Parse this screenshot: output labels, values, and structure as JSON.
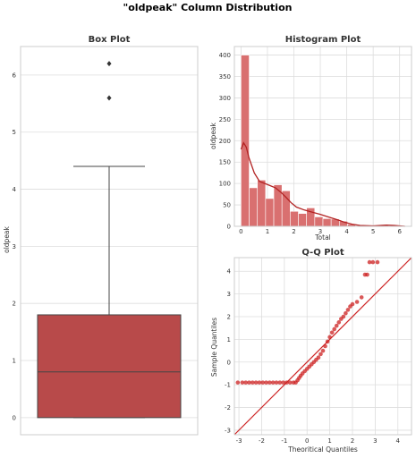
{
  "figure": {
    "title": "\"oldpeak\" Column Distribution"
  },
  "chart_data": [
    {
      "type": "box",
      "title": "Box Plot",
      "xlabel": "",
      "ylabel": "oldpeak",
      "ylim": [
        -0.3,
        6.5
      ],
      "yticks": [
        0,
        1,
        2,
        3,
        4,
        5,
        6
      ],
      "grid": true,
      "color": "#b84a4a",
      "box": {
        "whisker_low": 0.0,
        "q1": 0.0,
        "median": 0.8,
        "q3": 1.8,
        "whisker_high": 4.4
      },
      "outliers": [
        5.6,
        6.2
      ]
    },
    {
      "type": "bar",
      "title": "Histogram Plot",
      "xlabel": "Total",
      "ylabel": "oldpeak",
      "xlim": [
        -0.25,
        6.45
      ],
      "ylim": [
        0,
        420
      ],
      "xticks": [
        0,
        1,
        2,
        3,
        4,
        5,
        6
      ],
      "yticks": [
        0,
        50,
        100,
        150,
        200,
        250,
        300,
        350,
        400
      ],
      "grid": true,
      "bar_color": "#d97070",
      "kde_color": "#b22222",
      "bin_width": 0.31,
      "bins": [
        0,
        0.31,
        0.62,
        0.93,
        1.24,
        1.55,
        1.86,
        2.17,
        2.48,
        2.79,
        3.1,
        3.41,
        3.72,
        4.03,
        4.34,
        4.65,
        4.96,
        5.27,
        5.58,
        5.89
      ],
      "values": [
        400,
        90,
        108,
        65,
        97,
        83,
        35,
        30,
        43,
        22,
        18,
        17,
        12,
        5,
        2,
        0,
        1,
        3,
        0,
        2
      ],
      "kde_x": [
        0,
        0.1,
        0.2,
        0.3,
        0.5,
        0.7,
        0.9,
        1.1,
        1.3,
        1.5,
        1.7,
        1.9,
        2.1,
        2.4,
        2.7,
        3.0,
        3.3,
        3.6,
        3.9,
        4.2,
        4.5,
        5.0,
        5.5,
        5.8,
        6.2
      ],
      "kde_y": [
        180,
        195,
        185,
        160,
        125,
        105,
        100,
        95,
        90,
        80,
        68,
        55,
        45,
        38,
        33,
        28,
        22,
        16,
        10,
        5,
        2,
        1,
        3,
        2,
        0
      ]
    },
    {
      "type": "scatter",
      "title": "Q-Q Plot",
      "xlabel": "Theoritical Quantiles",
      "ylabel": "Sample Quantiles",
      "xlim": [
        -3.2,
        4.6
      ],
      "ylim": [
        -3.2,
        4.6
      ],
      "xticks": [
        -3,
        -2,
        -1,
        0,
        1,
        2,
        3,
        4
      ],
      "yticks": [
        -3,
        -2,
        -1,
        0,
        1,
        2,
        3,
        4
      ],
      "grid": true,
      "point_color": "#cc2020",
      "line_color": "#cc2020",
      "reference_line": [
        [
          -3.2,
          -3.2
        ],
        [
          4.6,
          4.6
        ]
      ],
      "points": [
        [
          -3.05,
          -0.9
        ],
        [
          -2.85,
          -0.9
        ],
        [
          -2.7,
          -0.9
        ],
        [
          -2.55,
          -0.9
        ],
        [
          -2.4,
          -0.9
        ],
        [
          -2.25,
          -0.9
        ],
        [
          -2.1,
          -0.9
        ],
        [
          -1.95,
          -0.9
        ],
        [
          -1.8,
          -0.9
        ],
        [
          -1.65,
          -0.9
        ],
        [
          -1.5,
          -0.9
        ],
        [
          -1.35,
          -0.9
        ],
        [
          -1.2,
          -0.9
        ],
        [
          -1.05,
          -0.9
        ],
        [
          -0.9,
          -0.9
        ],
        [
          -0.75,
          -0.9
        ],
        [
          -0.6,
          -0.9
        ],
        [
          -0.5,
          -0.9
        ],
        [
          -0.42,
          -0.8
        ],
        [
          -0.35,
          -0.7
        ],
        [
          -0.28,
          -0.6
        ],
        [
          -0.2,
          -0.5
        ],
        [
          -0.1,
          -0.4
        ],
        [
          0.0,
          -0.3
        ],
        [
          0.1,
          -0.2
        ],
        [
          0.2,
          -0.1
        ],
        [
          0.3,
          0.0
        ],
        [
          0.4,
          0.1
        ],
        [
          0.5,
          0.2
        ],
        [
          0.6,
          0.35
        ],
        [
          0.7,
          0.5
        ],
        [
          0.8,
          0.7
        ],
        [
          0.9,
          0.9
        ],
        [
          1.0,
          1.1
        ],
        [
          1.1,
          1.3
        ],
        [
          1.2,
          1.45
        ],
        [
          1.3,
          1.6
        ],
        [
          1.4,
          1.75
        ],
        [
          1.5,
          1.9
        ],
        [
          1.6,
          2.0
        ],
        [
          1.7,
          2.15
        ],
        [
          1.8,
          2.3
        ],
        [
          1.9,
          2.45
        ],
        [
          2.0,
          2.55
        ],
        [
          2.2,
          2.65
        ],
        [
          2.4,
          2.85
        ],
        [
          2.55,
          3.85
        ],
        [
          2.65,
          3.85
        ],
        [
          2.75,
          4.4
        ],
        [
          2.9,
          4.4
        ],
        [
          3.1,
          4.4
        ]
      ]
    }
  ]
}
